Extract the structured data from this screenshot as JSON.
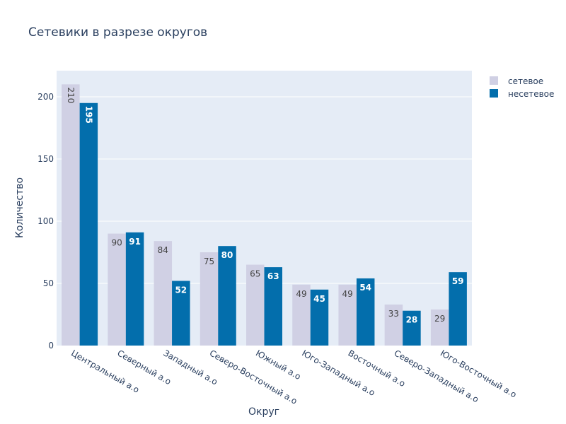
{
  "chart_data": {
    "type": "bar",
    "title": "Сетевики в разрезе округов",
    "xlabel": "Округ",
    "ylabel": "Количество",
    "ylim": [
      0,
      221
    ],
    "yticks": [
      0,
      50,
      100,
      150,
      200
    ],
    "grid": true,
    "legend_position": "top-right",
    "categories": [
      "Центральный а.о",
      "Северный а.о",
      "Западный а.о",
      "Северо-Восточный а.о",
      "Южный а.о",
      "Юго-Западный а.о",
      "Восточный а.о",
      "Северо-Западный а.о",
      "Юго-Восточный а.о"
    ],
    "series": [
      {
        "name": "сетевое",
        "values": [
          210,
          90,
          84,
          75,
          65,
          49,
          49,
          33,
          29
        ],
        "color": "#d0d0e4"
      },
      {
        "name": "несетевое",
        "values": [
          195,
          91,
          52,
          80,
          63,
          45,
          54,
          28,
          59
        ],
        "color": "#036eac"
      }
    ],
    "plot_bg": "#e5ecf6"
  }
}
